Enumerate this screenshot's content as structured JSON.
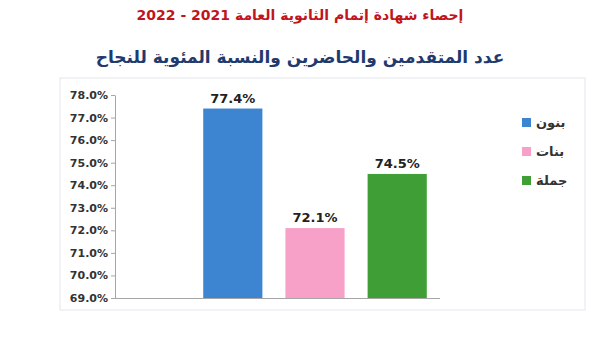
{
  "chart_data": {
    "type": "bar",
    "title": "إحصاء شهادة إتمام الثانوية العامة 2021 - 2022",
    "subtitle": "عدد المتقدمين والحاضرين والنسبة المئوية للنجاح",
    "categories": [
      "بنون",
      "بنات",
      "جملة"
    ],
    "values": [
      77.4,
      72.1,
      74.5
    ],
    "value_labels": [
      "77.4%",
      "72.1%",
      "74.5%"
    ],
    "colors": [
      "#3d85d1",
      "#f7a1c9",
      "#3f9e35"
    ],
    "ylim": [
      69,
      78
    ],
    "yticks": [
      {
        "value": 69,
        "label": "69.0%"
      },
      {
        "value": 70,
        "label": "70.0%"
      },
      {
        "value": 71,
        "label": "71.0%"
      },
      {
        "value": 72,
        "label": "72.0%"
      },
      {
        "value": 73,
        "label": "73.0%"
      },
      {
        "value": 74,
        "label": "74.0%"
      },
      {
        "value": 75,
        "label": "75.0%"
      },
      {
        "value": 76,
        "label": "76.0%"
      },
      {
        "value": 77,
        "label": "77.0%"
      },
      {
        "value": 78,
        "label": "78.0%"
      }
    ],
    "grid": false,
    "data_labels": true,
    "tick_labels": "y",
    "legend": "right"
  }
}
